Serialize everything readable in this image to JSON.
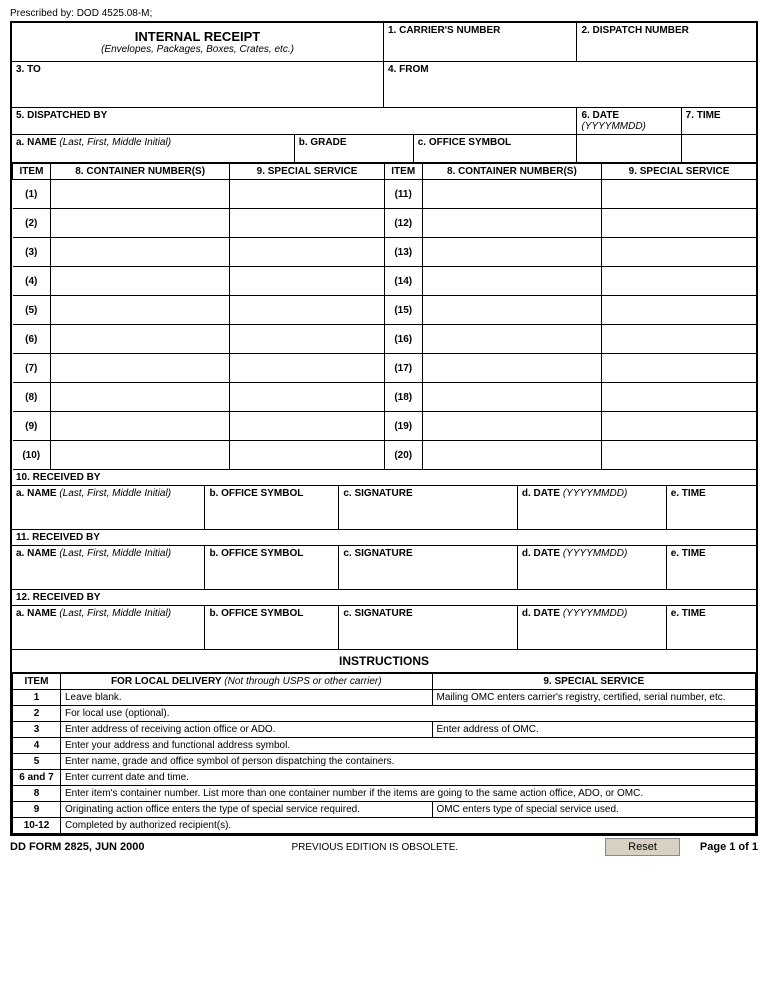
{
  "prescribed": "Prescribed by: DOD 4525.08-M;",
  "header": {
    "title": "INTERNAL RECEIPT",
    "subtitle": "(Envelopes, Packages, Boxes, Crates, etc.)",
    "carrier": "1. CARRIER'S NUMBER",
    "dispatch": "2. DISPATCH NUMBER"
  },
  "to": "3. TO",
  "from": "4. FROM",
  "dispatched": {
    "title": "5. DISPATCHED BY",
    "name_lbl": "a. NAME",
    "name_hint": " (Last, First, Middle Initial)",
    "grade": "b. GRADE",
    "office": "c. OFFICE SYMBOL",
    "date_lbl": "6. DATE",
    "date_hint": " (YYYYMMDD)",
    "time": "7. TIME"
  },
  "cols": {
    "item": "ITEM",
    "container": "8. CONTAINER NUMBER(S)",
    "service": "9. SPECIAL SERVICE"
  },
  "rows_left": [
    "(1)",
    "(2)",
    "(3)",
    "(4)",
    "(5)",
    "(6)",
    "(7)",
    "(8)",
    "(9)",
    "(10)"
  ],
  "rows_right": [
    "(11)",
    "(12)",
    "(13)",
    "(14)",
    "(15)",
    "(16)",
    "(17)",
    "(18)",
    "(19)",
    "(20)"
  ],
  "recv": {
    "t10": "10. RECEIVED BY",
    "t11": "11. RECEIVED BY",
    "t12": "12. RECEIVED BY",
    "name_lbl": "a. NAME",
    "name_hint": " (Last, First, Middle Initial)",
    "office": "b. OFFICE SYMBOL",
    "sig": "c. SIGNATURE",
    "date_lbl": "d. DATE",
    "date_hint": " (YYYYMMDD)",
    "time": "e. TIME"
  },
  "instr": {
    "title": "INSTRUCTIONS",
    "col_item": "ITEM",
    "col_local_lbl": "FOR LOCAL DELIVERY",
    "col_local_hint": " (Not through USPS or other carrier)",
    "col_service": "9. SPECIAL SERVICE",
    "rows": [
      {
        "n": "1",
        "a": "Leave blank.",
        "b": "Mailing OMC enters carrier's registry, certified, serial number, etc."
      },
      {
        "n": "2",
        "a": "For local use (optional).",
        "b": ""
      },
      {
        "n": "3",
        "a": "Enter address of receiving action office or ADO.",
        "b": "Enter address of OMC."
      },
      {
        "n": "4",
        "a": "Enter your address and functional address symbol.",
        "b": ""
      },
      {
        "n": "5",
        "a": "Enter name, grade and office symbol of person dispatching the containers.",
        "b": ""
      },
      {
        "n": "6 and 7",
        "a": "Enter current date and time.",
        "b": ""
      },
      {
        "n": "8",
        "a": "Enter item's container number. List more than one container number if the items are going to the same action office, ADO, or OMC.",
        "b": ""
      },
      {
        "n": "9",
        "a": "Originating action office enters the type of special service required.",
        "b": "OMC enters type of special service used."
      },
      {
        "n": "10-12",
        "a": "Completed by authorized recipient(s).",
        "b": ""
      }
    ]
  },
  "footer": {
    "form": "DD FORM 2825, JUN 2000",
    "obsolete": "PREVIOUS EDITION IS OBSOLETE.",
    "reset": "Reset",
    "page": "Page 1 of 1"
  }
}
